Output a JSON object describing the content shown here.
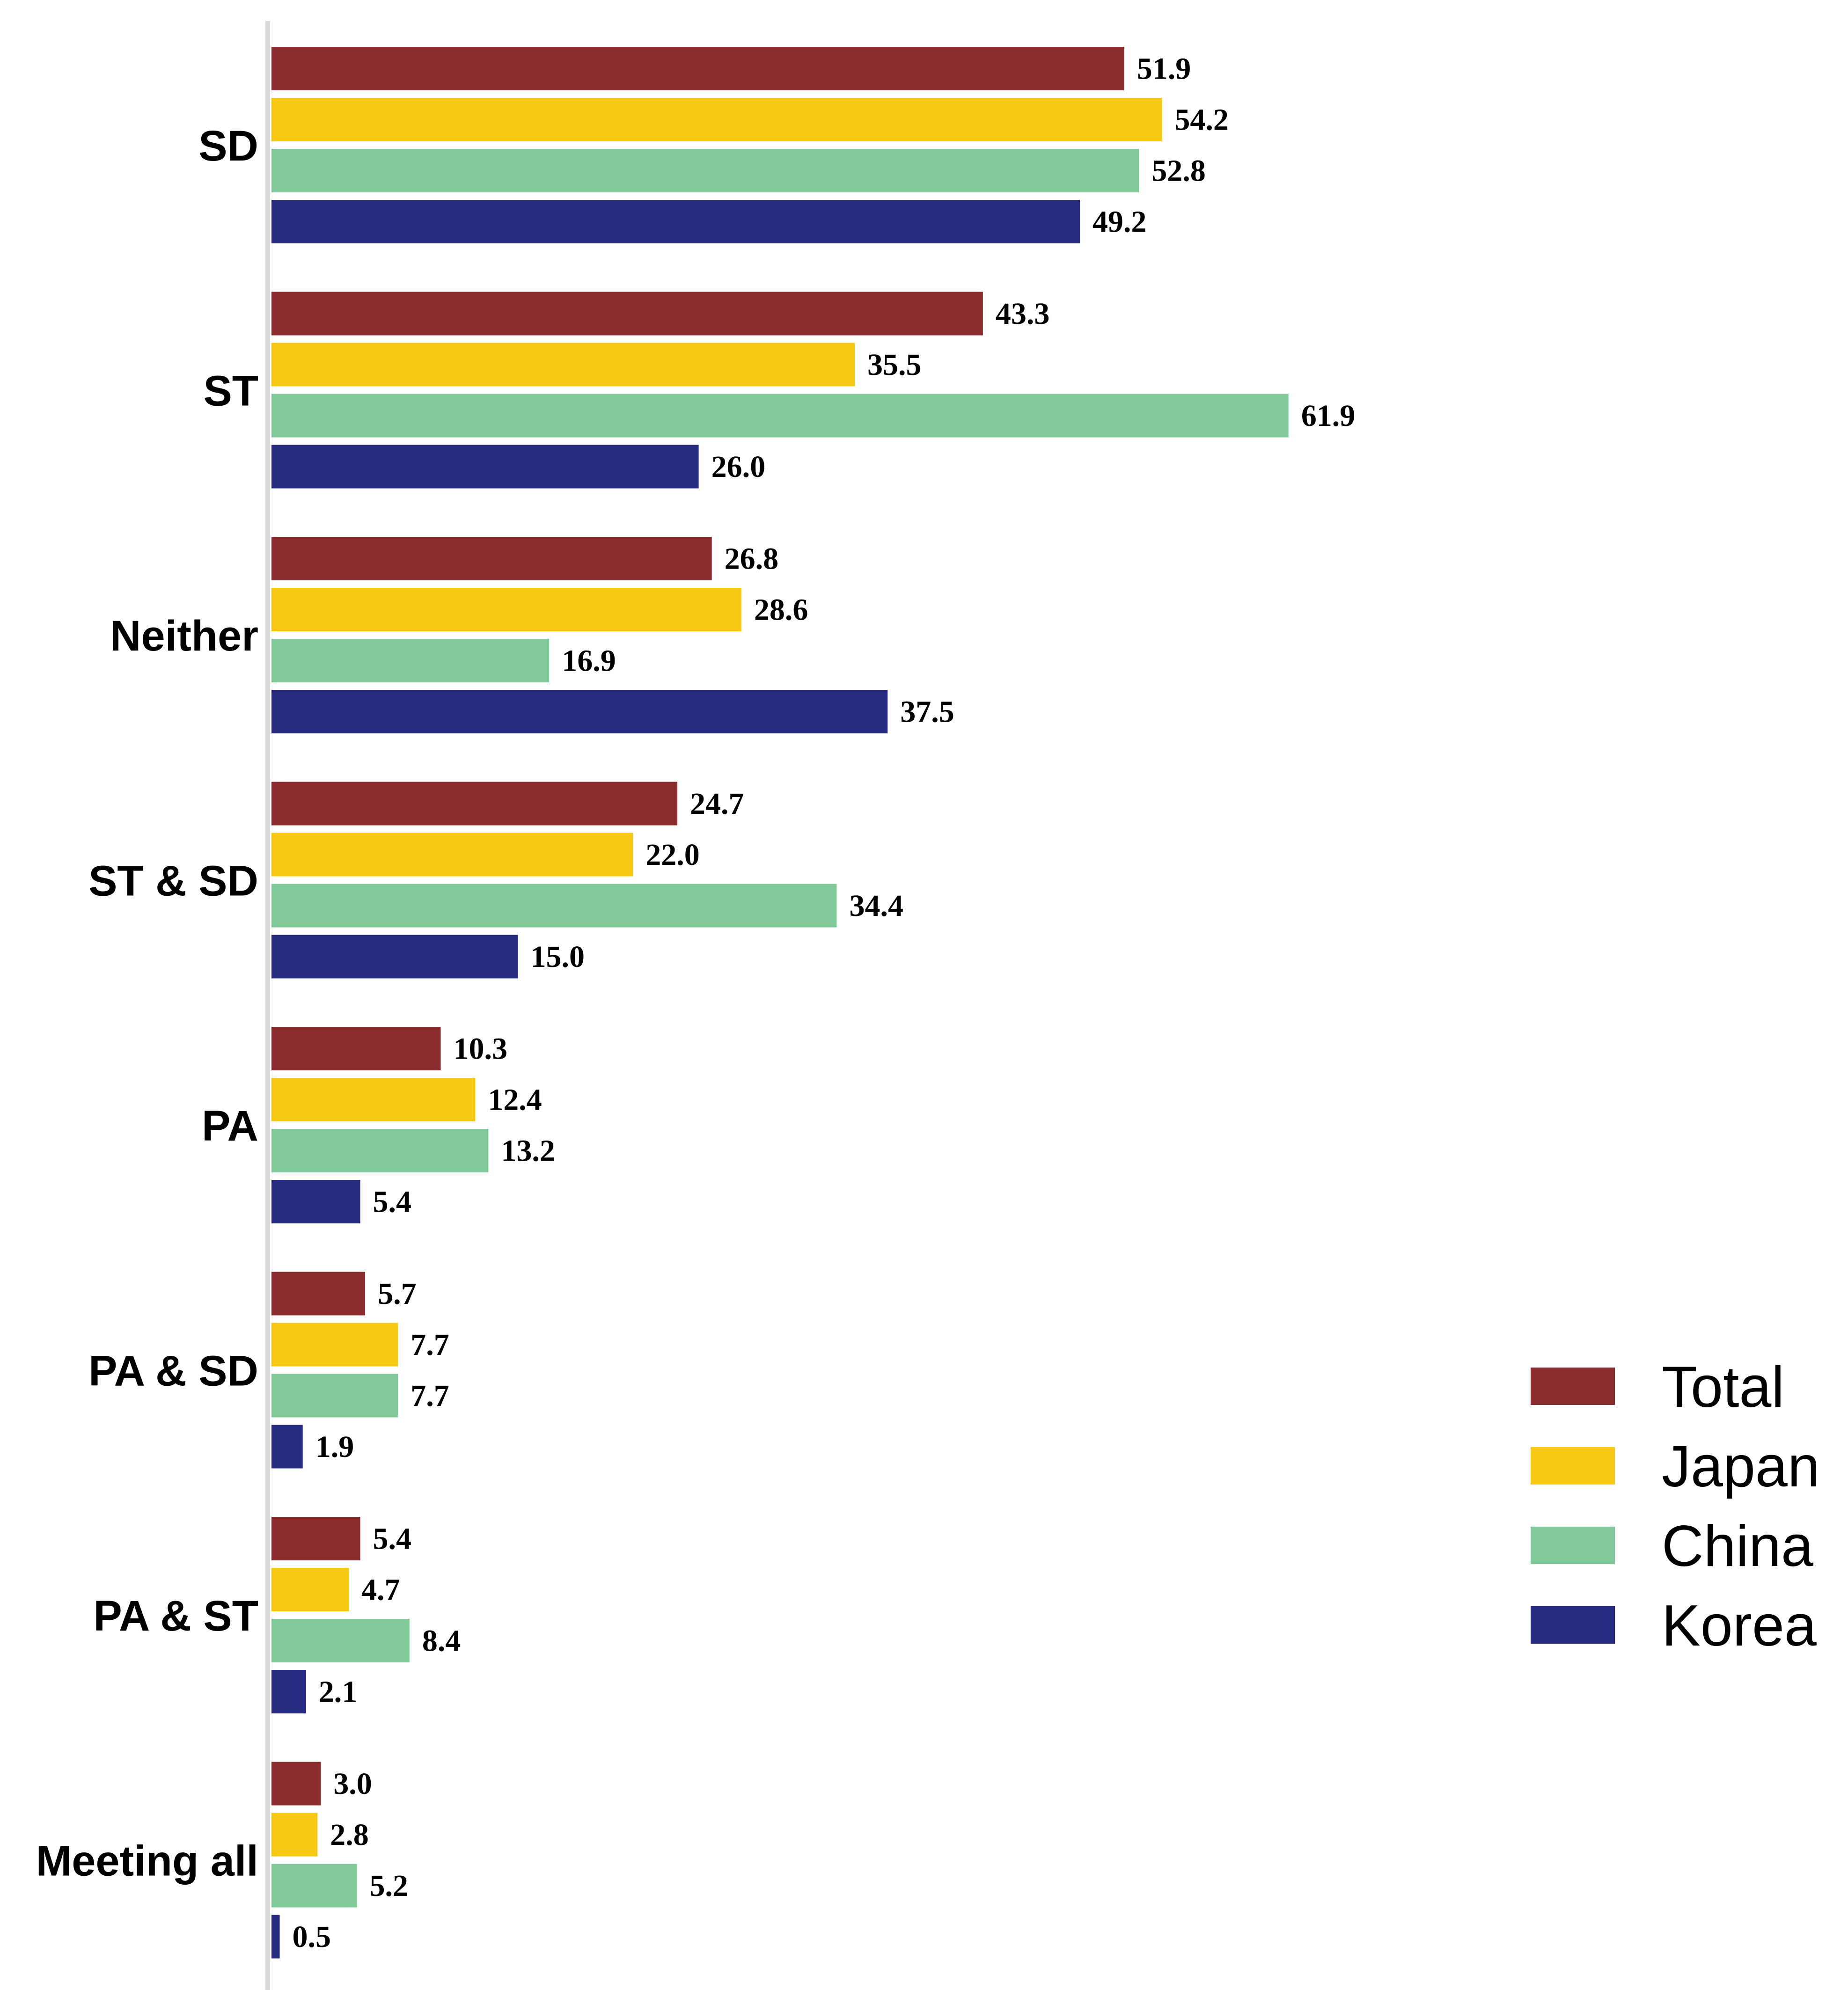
{
  "chart_data": {
    "type": "bar",
    "orientation": "horizontal",
    "title": "",
    "xlabel": "",
    "ylabel": "",
    "categories": [
      "SD",
      "ST",
      "Neither",
      "ST & SD",
      "PA",
      "PA & SD",
      "PA & ST",
      "Meeting all"
    ],
    "series": [
      {
        "name": "Total",
        "color": "#8B2C2F",
        "values": [
          51.9,
          43.3,
          26.8,
          24.7,
          10.3,
          5.7,
          5.4,
          3.0
        ],
        "labels": [
          "51.9",
          "43.3",
          "26.8",
          "24.7",
          "10.3",
          "5.7",
          "5.4",
          "3.0"
        ]
      },
      {
        "name": "Japan",
        "color": "#F8C914",
        "values": [
          54.2,
          35.5,
          28.6,
          22.0,
          12.4,
          7.7,
          4.7,
          2.8
        ],
        "labels": [
          "54.2",
          "35.5",
          "28.6",
          "22.0",
          "12.4",
          "7.7",
          "4.7",
          "2.8"
        ]
      },
      {
        "name": "China",
        "color": "#82C99A",
        "values": [
          52.8,
          61.9,
          16.9,
          34.4,
          13.2,
          7.7,
          8.4,
          5.2
        ],
        "labels": [
          "52.8",
          "61.9",
          "16.9",
          "34.4",
          "13.2",
          "7.7",
          "8.4",
          "5.2"
        ]
      },
      {
        "name": "Korea",
        "color": "#262B80",
        "values": [
          49.2,
          26.0,
          37.5,
          15.0,
          5.4,
          1.9,
          2.1,
          0.5
        ],
        "labels": [
          "49.2",
          "26.0",
          "37.5",
          "15.0",
          "5.4",
          "1.9",
          "2.1",
          "0.5"
        ]
      }
    ],
    "xlim": [
      0,
      100
    ],
    "grid": false,
    "legend_position": "right",
    "axis_color": "#D9D9D9"
  }
}
